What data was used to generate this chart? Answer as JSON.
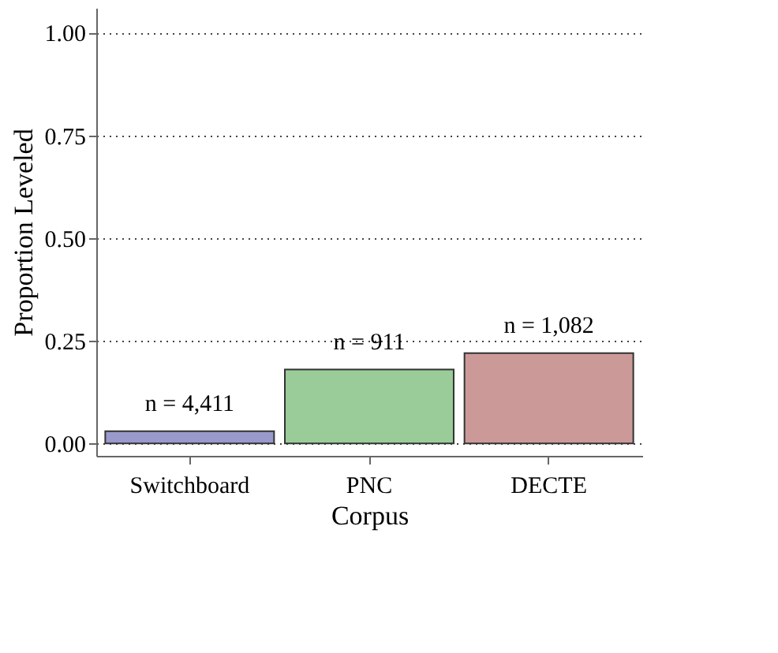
{
  "chart_data": {
    "type": "bar",
    "xlabel": "Corpus",
    "ylabel": "Proportion Leveled",
    "categories": [
      "Switchboard",
      "PNC",
      "DECTE"
    ],
    "values": [
      0.03,
      0.18,
      0.22
    ],
    "colors": [
      "#9999cc",
      "#99cc99",
      "#cc9999"
    ],
    "annotations": [
      {
        "text": "n = 4,411",
        "x": "Switchboard",
        "y": 0.03
      },
      {
        "text": "n = 911",
        "x": "PNC",
        "y": 0.18
      },
      {
        "text": "n = 1,082",
        "x": "DECTE",
        "y": 0.22
      }
    ],
    "ylim": [
      -0.03,
      1.06
    ],
    "yticks": [
      {
        "value": 0,
        "label": "0.00"
      },
      0.25,
      {
        "value": 0.5,
        "label": "0.50"
      },
      0.75,
      {
        "value": 1,
        "label": "1.00"
      }
    ],
    "grid": "y"
  }
}
